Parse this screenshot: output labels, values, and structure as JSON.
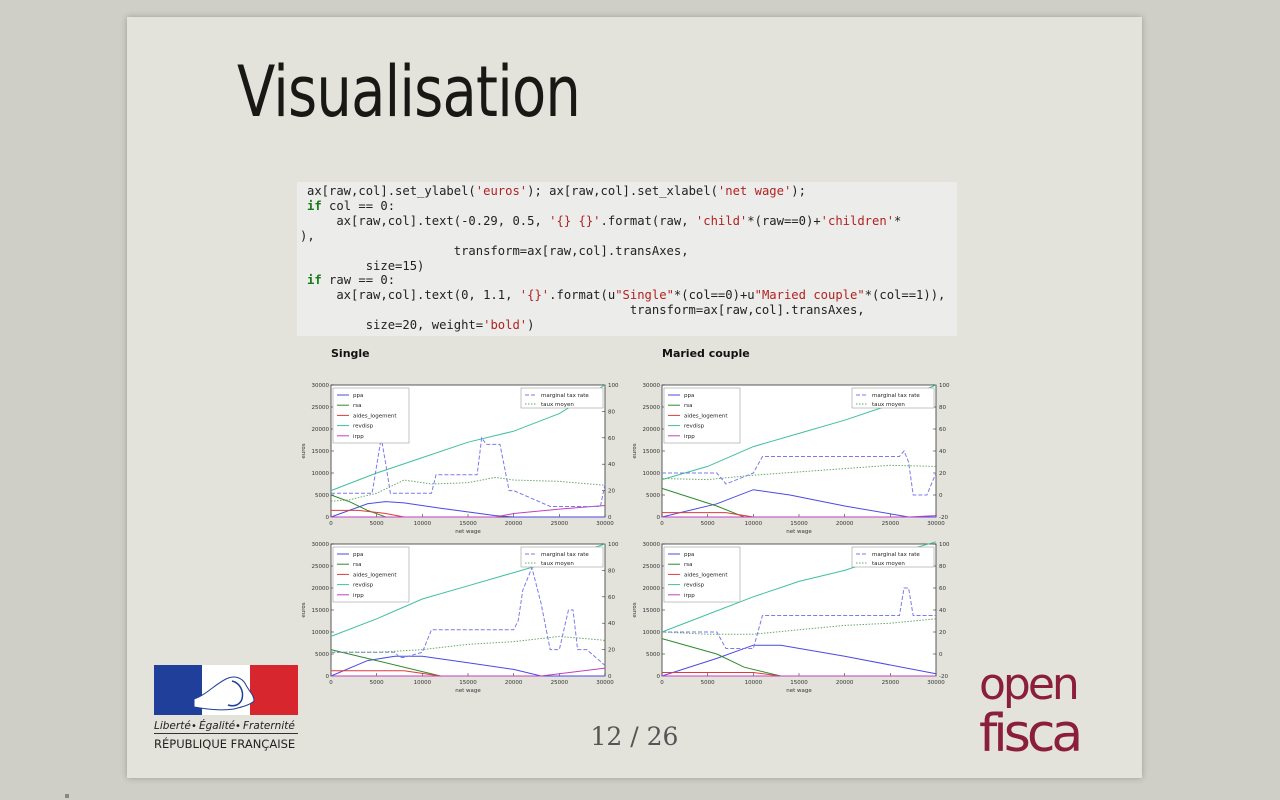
{
  "slide": {
    "title": "Visualisation",
    "page_number": "12 / 26"
  },
  "code": [
    [
      {
        "t": "ax[raw,col].set_ylabel("
      },
      {
        "t": "'euros'",
        "c": "str"
      },
      {
        "t": "); ax[raw,col].set_xlabel("
      },
      {
        "t": "'net wage'",
        "c": "str"
      },
      {
        "t": ");"
      }
    ],
    [
      {
        "t": "if",
        "c": "kw"
      },
      {
        "t": " col == 0:"
      }
    ],
    [
      {
        "t": "    ax[raw,col].text(-0.29, 0.5, "
      },
      {
        "t": "'{} {}'",
        "c": "str"
      },
      {
        "t": ".format(raw, "
      },
      {
        "t": "'child'",
        "c": "str"
      },
      {
        "t": "*(raw==0)+"
      },
      {
        "t": "'children'",
        "c": "str"
      },
      {
        "t": "*"
      }
    ],
    [
      {
        "t": "),"
      }
    ],
    [
      {
        "t": "                    transform=ax[raw,col].transAxes,"
      }
    ],
    [
      {
        "t": "        size=15)"
      }
    ],
    [
      {
        "t": "if",
        "c": "kw"
      },
      {
        "t": " raw == 0:"
      }
    ],
    [
      {
        "t": "    ax[raw,col].text(0, 1.1, "
      },
      {
        "t": "'{}'",
        "c": "str"
      },
      {
        "t": ".format(u"
      },
      {
        "t": "\"Single\"",
        "c": "str"
      },
      {
        "t": "*(col==0)+u"
      },
      {
        "t": "\"Maried couple\"",
        "c": "str"
      },
      {
        "t": "*(col==1)),"
      }
    ],
    [
      {
        "t": "                                            transform=ax[raw,col].transAxes,"
      }
    ],
    [
      {
        "t": "        size=20, weight="
      },
      {
        "t": "'bold'",
        "c": "str"
      },
      {
        "t": ")"
      }
    ]
  ],
  "column_titles": [
    "Single",
    "Maried couple"
  ],
  "chart_data": [
    {
      "type": "line",
      "xlabel": "net wage",
      "ylabel": "euros",
      "xlim": [
        0,
        30000
      ],
      "ylim": [
        0,
        30000
      ],
      "y2lim": [
        0,
        100
      ],
      "x_ticks": [
        0,
        5000,
        10000,
        15000,
        20000,
        25000,
        30000
      ],
      "y_ticks": [
        0,
        5000,
        10000,
        15000,
        20000,
        25000,
        30000
      ],
      "y2_ticks": [
        0,
        20,
        40,
        60,
        80,
        100
      ],
      "grid": false,
      "legend_left": [
        "ppa",
        "rsa",
        "aides_logement",
        "revdisp",
        "irpp"
      ],
      "legend_right": [
        "marginal tax rate",
        "taux moyen"
      ],
      "colors": {
        "ppa": "#4a4ae6",
        "rsa": "#2e8b2e",
        "aides_logement": "#e03a3a",
        "revdisp": "#40c0a0",
        "irpp": "#c040c0",
        "marginal tax rate": "#7a7aee",
        "taux moyen": "#6aaa6a"
      },
      "series_left": [
        {
          "name": "ppa",
          "x": [
            0,
            2000,
            4000,
            6000,
            8000,
            12000,
            18000,
            20000,
            30000
          ],
          "y": [
            0,
            1500,
            3000,
            3500,
            3200,
            2000,
            300,
            0,
            0
          ]
        },
        {
          "name": "rsa",
          "x": [
            0,
            2000,
            4000,
            6000
          ],
          "y": [
            5000,
            3500,
            1500,
            0
          ]
        },
        {
          "name": "aides_logement",
          "x": [
            0,
            3000,
            6000,
            8000
          ],
          "y": [
            1500,
            1500,
            800,
            0
          ]
        },
        {
          "name": "revdisp",
          "x": [
            0,
            5000,
            10000,
            15000,
            20000,
            25000,
            30000
          ],
          "y": [
            6000,
            10000,
            13500,
            17000,
            19500,
            23500,
            30000
          ]
        },
        {
          "name": "irpp",
          "x": [
            0,
            18000,
            20000,
            25000,
            30000
          ],
          "y": [
            0,
            0,
            800,
            1800,
            2600
          ]
        }
      ],
      "series_right": [
        {
          "name": "marginal tax rate",
          "x": [
            0,
            4500,
            5500,
            6000,
            6500,
            7500,
            11000,
            11500,
            16000,
            16500,
            17000,
            17500,
            18500,
            19500,
            20000,
            24000,
            25000,
            29500,
            30000
          ],
          "y": [
            18,
            18,
            60,
            40,
            18,
            18,
            18,
            32,
            32,
            60,
            55,
            55,
            55,
            20,
            20,
            8,
            8,
            8,
            25
          ]
        },
        {
          "name": "taux moyen",
          "x": [
            0,
            2000,
            5000,
            8000,
            11000,
            15000,
            18000,
            20000,
            25000,
            30000
          ],
          "y": [
            12,
            13,
            18,
            28,
            25,
            26,
            30,
            28,
            27,
            24
          ]
        }
      ]
    },
    {
      "type": "line",
      "xlabel": "net wage",
      "ylabel": "euros",
      "xlim": [
        0,
        30000
      ],
      "ylim": [
        0,
        30000
      ],
      "y2lim": [
        -20,
        100
      ],
      "x_ticks": [
        0,
        5000,
        10000,
        15000,
        20000,
        25000,
        30000
      ],
      "y_ticks": [
        0,
        5000,
        10000,
        15000,
        20000,
        25000,
        30000
      ],
      "y2_ticks": [
        -20,
        0,
        20,
        40,
        60,
        80,
        100
      ],
      "grid": false,
      "legend_left": [
        "ppa",
        "rsa",
        "aides_logement",
        "revdisp",
        "irpp"
      ],
      "legend_right": [
        "marginal tax rate",
        "taux moyen"
      ],
      "colors": {
        "ppa": "#4a4ae6",
        "rsa": "#2e8b2e",
        "aides_logement": "#e03a3a",
        "revdisp": "#40c0a0",
        "irpp": "#c040c0",
        "marginal tax rate": "#7a7aee",
        "taux moyen": "#6aaa6a"
      },
      "series_left": [
        {
          "name": "ppa",
          "x": [
            0,
            6000,
            10000,
            14000,
            20000,
            27000,
            30000
          ],
          "y": [
            0,
            3000,
            6200,
            5000,
            2500,
            0,
            0
          ]
        },
        {
          "name": "rsa",
          "x": [
            0,
            6000,
            9000
          ],
          "y": [
            6500,
            2500,
            0
          ]
        },
        {
          "name": "aides_logement",
          "x": [
            0,
            7000,
            10000
          ],
          "y": [
            1000,
            1000,
            0
          ]
        },
        {
          "name": "revdisp",
          "x": [
            0,
            5000,
            10000,
            15000,
            20000,
            25000,
            30000
          ],
          "y": [
            8500,
            11500,
            16000,
            19000,
            22000,
            25500,
            30000
          ]
        },
        {
          "name": "irpp",
          "x": [
            0,
            27000,
            30000
          ],
          "y": [
            0,
            0,
            300
          ]
        }
      ],
      "series_right": [
        {
          "name": "marginal tax rate",
          "x": [
            0,
            6000,
            7000,
            10000,
            11000,
            12000,
            26000,
            26500,
            27000,
            27500,
            28000,
            29000,
            30000
          ],
          "y": [
            20,
            20,
            10,
            20,
            35,
            35,
            35,
            40,
            30,
            0,
            0,
            0,
            20
          ]
        },
        {
          "name": "taux moyen",
          "x": [
            0,
            5000,
            10000,
            15000,
            20000,
            25000,
            30000
          ],
          "y": [
            15,
            14,
            18,
            21,
            24,
            27,
            26
          ]
        }
      ]
    },
    {
      "type": "line",
      "xlabel": "net wage",
      "ylabel": "euros",
      "xlim": [
        0,
        30000
      ],
      "ylim": [
        0,
        30000
      ],
      "y2lim": [
        0,
        100
      ],
      "x_ticks": [
        0,
        5000,
        10000,
        15000,
        20000,
        25000,
        30000
      ],
      "y_ticks": [
        0,
        5000,
        10000,
        15000,
        20000,
        25000,
        30000
      ],
      "y2_ticks": [
        0,
        20,
        40,
        60,
        80,
        100
      ],
      "grid": false,
      "legend_left": [
        "ppa",
        "rsa",
        "aides_logement",
        "revdisp",
        "irpp"
      ],
      "legend_right": [
        "marginal tax rate",
        "taux moyen"
      ],
      "colors": {
        "ppa": "#4a4ae6",
        "rsa": "#2e8b2e",
        "aides_logement": "#e03a3a",
        "revdisp": "#40c0a0",
        "irpp": "#c040c0",
        "marginal tax rate": "#7a7aee",
        "taux moyen": "#6aaa6a"
      },
      "series_left": [
        {
          "name": "ppa",
          "x": [
            0,
            4000,
            7000,
            10000,
            15000,
            20000,
            23000,
            30000
          ],
          "y": [
            0,
            3500,
            4500,
            4500,
            3000,
            1500,
            0,
            0
          ]
        },
        {
          "name": "rsa",
          "x": [
            0,
            5000,
            10000,
            12000
          ],
          "y": [
            6000,
            3500,
            1000,
            0
          ]
        },
        {
          "name": "aides_logement",
          "x": [
            0,
            8000,
            12000
          ],
          "y": [
            1200,
            1200,
            0
          ]
        },
        {
          "name": "revdisp",
          "x": [
            0,
            5000,
            10000,
            15000,
            20000,
            25000,
            30000
          ],
          "y": [
            9000,
            13000,
            17500,
            20500,
            23500,
            26500,
            30000
          ]
        },
        {
          "name": "irpp",
          "x": [
            0,
            23000,
            30000
          ],
          "y": [
            0,
            0,
            1800
          ]
        }
      ],
      "series_right": [
        {
          "name": "marginal tax rate",
          "x": [
            0,
            7000,
            7500,
            8000,
            10000,
            11000,
            20000,
            20500,
            21000,
            22000,
            23000,
            24000,
            25000,
            26000,
            26500,
            27000,
            28000,
            30000
          ],
          "y": [
            18,
            18,
            14,
            14,
            18,
            35,
            35,
            42,
            65,
            82,
            55,
            20,
            20,
            50,
            50,
            20,
            20,
            8
          ]
        },
        {
          "name": "taux moyen",
          "x": [
            0,
            5000,
            10000,
            15000,
            20000,
            25000,
            30000
          ],
          "y": [
            18,
            18,
            20,
            24,
            26,
            30,
            27
          ]
        }
      ]
    },
    {
      "type": "line",
      "xlabel": "net wage",
      "ylabel": "euros",
      "xlim": [
        0,
        30000
      ],
      "ylim": [
        0,
        30000
      ],
      "y2lim": [
        -20,
        100
      ],
      "x_ticks": [
        0,
        5000,
        10000,
        15000,
        20000,
        25000,
        30000
      ],
      "y_ticks": [
        0,
        5000,
        10000,
        15000,
        20000,
        25000,
        30000
      ],
      "y2_ticks": [
        -20,
        0,
        20,
        40,
        60,
        80,
        100
      ],
      "grid": false,
      "legend_left": [
        "ppa",
        "rsa",
        "aides_logement",
        "revdisp",
        "irpp"
      ],
      "legend_right": [
        "marginal tax rate",
        "taux moyen"
      ],
      "colors": {
        "ppa": "#4a4ae6",
        "rsa": "#2e8b2e",
        "aides_logement": "#e03a3a",
        "revdisp": "#40c0a0",
        "irpp": "#c040c0",
        "marginal tax rate": "#7a7aee",
        "taux moyen": "#6aaa6a"
      },
      "series_left": [
        {
          "name": "ppa",
          "x": [
            0,
            6000,
            10000,
            13000,
            20000,
            30000
          ],
          "y": [
            0,
            4000,
            7000,
            7000,
            4500,
            500
          ]
        },
        {
          "name": "rsa",
          "x": [
            0,
            6000,
            9000,
            13000
          ],
          "y": [
            8500,
            5000,
            2000,
            0
          ]
        },
        {
          "name": "aides_logement",
          "x": [
            0,
            10000,
            13000
          ],
          "y": [
            800,
            800,
            0
          ]
        },
        {
          "name": "revdisp",
          "x": [
            0,
            5000,
            10000,
            15000,
            20000,
            25000,
            30000
          ],
          "y": [
            10000,
            14000,
            18000,
            21500,
            24000,
            27500,
            30500
          ]
        },
        {
          "name": "irpp",
          "x": [
            0,
            30000
          ],
          "y": [
            0,
            0
          ]
        }
      ],
      "series_right": [
        {
          "name": "marginal tax rate",
          "x": [
            0,
            6000,
            7000,
            10000,
            11000,
            12000,
            26000,
            26500,
            27000,
            27500,
            28000,
            30000
          ],
          "y": [
            20,
            20,
            5,
            5,
            35,
            35,
            35,
            60,
            60,
            35,
            35,
            35
          ]
        },
        {
          "name": "taux moyen",
          "x": [
            0,
            5000,
            10000,
            15000,
            20000,
            25000,
            30000
          ],
          "y": [
            20,
            18,
            18,
            22,
            26,
            28,
            32
          ]
        }
      ]
    }
  ],
  "logos": {
    "rf": {
      "motto_1": "Liberté",
      "motto_2": "Égalité",
      "motto_3": "Fraternité",
      "motto_sep": "•",
      "name": "RÉPUBLIQUE FRANÇAISE",
      "blue": "#1f3f9a",
      "red": "#d7262e"
    },
    "openfisca": {
      "line1": "open",
      "line2": "fisca",
      "color": "#8a1e3c"
    }
  }
}
